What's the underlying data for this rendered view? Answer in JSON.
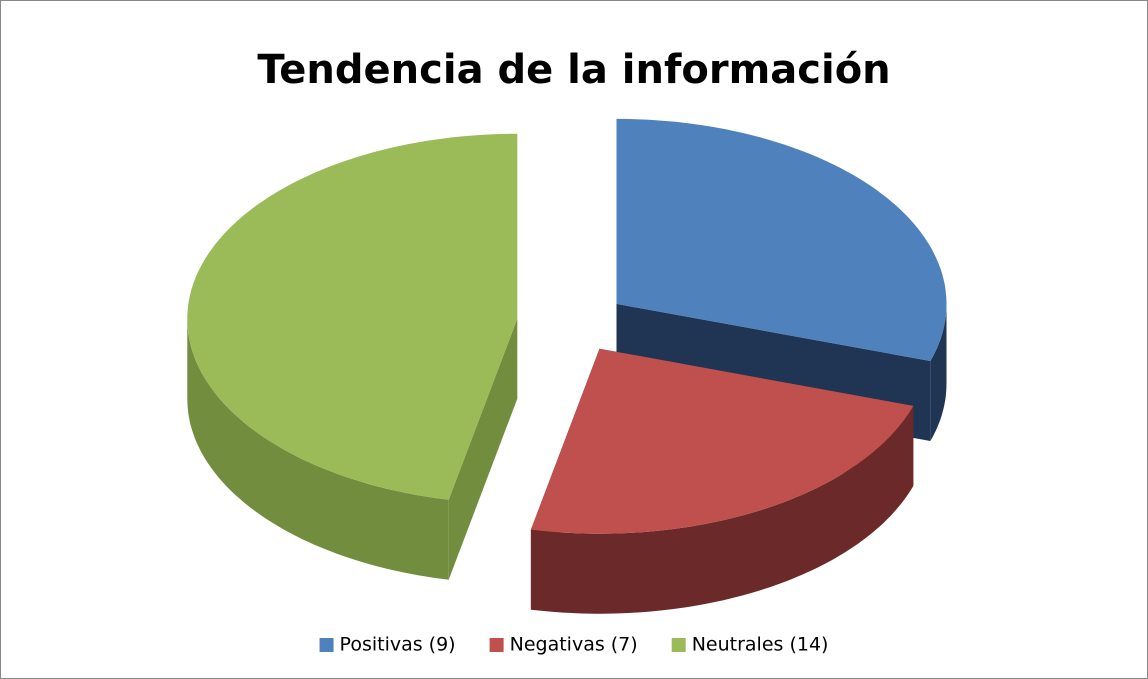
{
  "chart_data": {
    "type": "pie3d",
    "title": "Tendencia de la información",
    "categories": [
      "Positivas (9)",
      "Negativas (7)",
      "Neutrales (14)"
    ],
    "values": [
      9,
      7,
      14
    ],
    "colors": [
      "#4f81bd",
      "#c0504d",
      "#9bbb59"
    ],
    "side_colors": [
      "#1f3553",
      "#6b2a29",
      "#738d3f"
    ],
    "legend": "bottom"
  }
}
